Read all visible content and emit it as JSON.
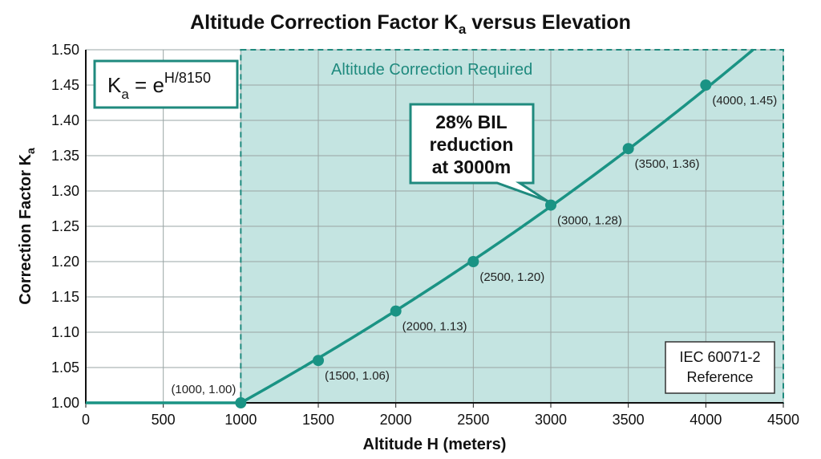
{
  "chart_data": {
    "type": "line",
    "title": "Altitude Correction Factor K",
    "title_subscript": "a",
    "title_suffix": " versus Elevation",
    "xlabel": "Altitude H (meters)",
    "ylabel": "Correction Factor K",
    "ylabel_subscript": "a",
    "xlim": [
      0,
      4500
    ],
    "ylim": [
      1.0,
      1.5
    ],
    "xticks": [
      0,
      500,
      1000,
      1500,
      2000,
      2500,
      3000,
      3500,
      4000,
      4500
    ],
    "yticks": [
      "1.00",
      "1.05",
      "1.10",
      "1.15",
      "1.20",
      "1.25",
      "1.30",
      "1.35",
      "1.40",
      "1.45",
      "1.50"
    ],
    "grid": true,
    "points": [
      {
        "x": 1000,
        "y": 1.0,
        "label": "(1000, 1.00)"
      },
      {
        "x": 1500,
        "y": 1.06,
        "label": "(1500, 1.06)"
      },
      {
        "x": 2000,
        "y": 1.13,
        "label": "(2000, 1.13)"
      },
      {
        "x": 2500,
        "y": 1.2,
        "label": "(2500, 1.20)"
      },
      {
        "x": 3000,
        "y": 1.28,
        "label": "(3000, 1.28)"
      },
      {
        "x": 3500,
        "y": 1.36,
        "label": "(3500, 1.36)"
      },
      {
        "x": 4000,
        "y": 1.45,
        "label": "(4000, 1.45)"
      }
    ],
    "shaded_region": {
      "x_from": 1000,
      "x_to": 4500,
      "label": "Altitude Correction Required"
    },
    "formula": {
      "base": "K",
      "sub": "a",
      "eq": " = e",
      "sup": "H/8150"
    },
    "callout": {
      "lines": [
        "28% BIL",
        "reduction",
        "at 3000m"
      ],
      "points_to": {
        "x": 3000,
        "y": 1.28
      }
    },
    "reference_box": {
      "lines": [
        "IEC 60071-2",
        "Reference"
      ]
    },
    "colors": {
      "line": "#1a9384",
      "shade": "#c4e4e1",
      "border": "#1f8a7e",
      "grid": "#9aa5a4",
      "text": "#111111"
    }
  }
}
